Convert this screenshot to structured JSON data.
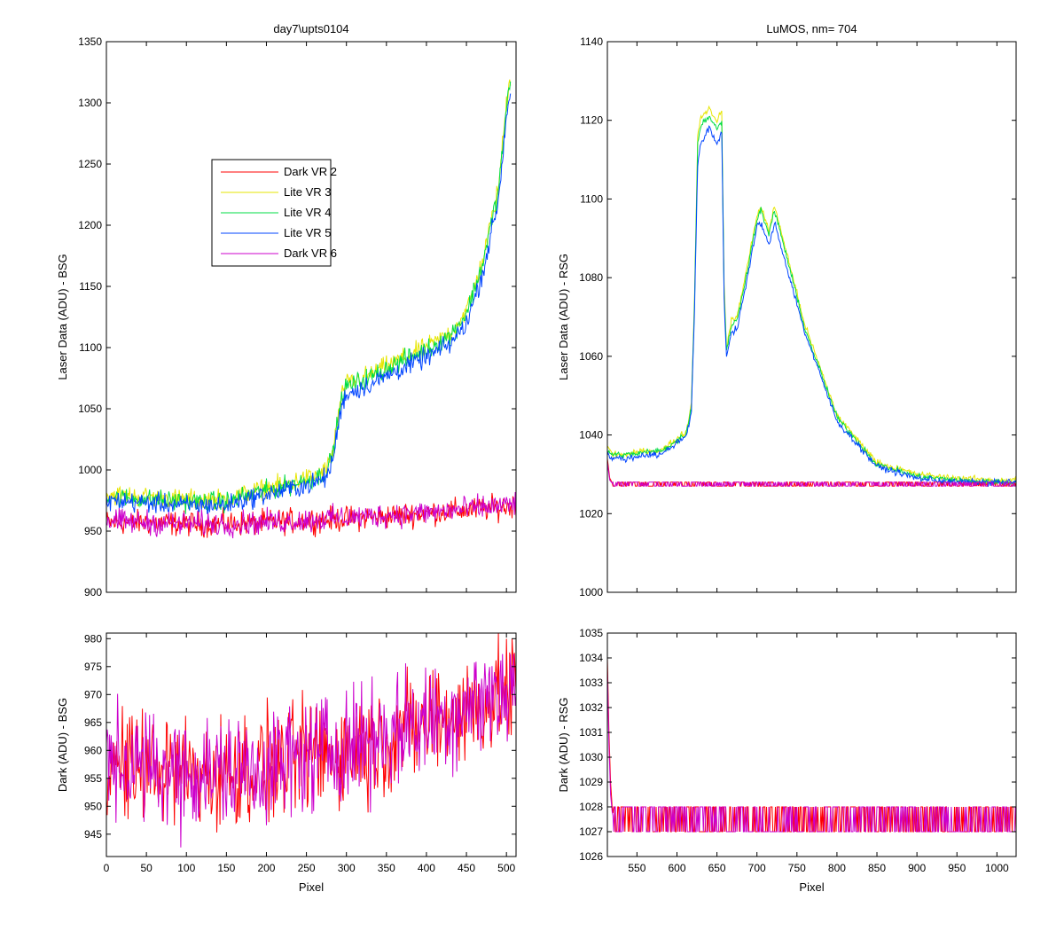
{
  "series_colors": {
    "Dark VR 2": "#ff0000",
    "Lite VR 3": "#e6e600",
    "Lite VR 4": "#00dd44",
    "Lite VR 5": "#0044ff",
    "Dark VR 6": "#cc00cc"
  },
  "chart_data": [
    {
      "id": "p1",
      "type": "line",
      "title": "day7\\upts0104",
      "xlabel": "",
      "ylabel": "Laser Data (ADU) - BSG",
      "xlim": [
        0,
        512
      ],
      "ylim": [
        900,
        1350
      ],
      "xticks": [
        0,
        50,
        100,
        150,
        200,
        250,
        300,
        350,
        400,
        450,
        500
      ],
      "xticklabels_visible": false,
      "yticks": [
        900,
        950,
        1000,
        1050,
        1100,
        1150,
        1200,
        1250,
        1300,
        1350
      ],
      "legend": {
        "placement": "upper-left-inside",
        "entries": [
          "Dark VR 2",
          "Lite VR 3",
          "Lite VR 4",
          "Lite VR 5",
          "Dark VR 6"
        ]
      },
      "series": [
        {
          "name": "Dark VR 2",
          "noise": 5,
          "x": [
            0,
            50,
            100,
            150,
            200,
            250,
            300,
            350,
            400,
            450,
            500,
            512
          ],
          "y": [
            957,
            957,
            956,
            956,
            957,
            959,
            960,
            962,
            965,
            967,
            970,
            972
          ]
        },
        {
          "name": "Lite VR 3",
          "noise": 4,
          "x": [
            0,
            50,
            100,
            150,
            180,
            220,
            260,
            275,
            283,
            290,
            296,
            300,
            330,
            360,
            400,
            430,
            450,
            470,
            490,
            500,
            505
          ],
          "y": [
            980,
            978,
            976,
            976,
            982,
            988,
            995,
            1000,
            1015,
            1045,
            1065,
            1070,
            1078,
            1088,
            1100,
            1112,
            1130,
            1170,
            1230,
            1300,
            1322
          ]
        },
        {
          "name": "Lite VR 4",
          "noise": 4,
          "x": [
            0,
            50,
            100,
            150,
            180,
            220,
            260,
            275,
            283,
            290,
            296,
            300,
            330,
            360,
            400,
            430,
            450,
            470,
            490,
            500,
            505
          ],
          "y": [
            978,
            976,
            974,
            974,
            980,
            986,
            993,
            998,
            1013,
            1043,
            1063,
            1068,
            1076,
            1086,
            1098,
            1110,
            1128,
            1168,
            1228,
            1296,
            1315
          ]
        },
        {
          "name": "Lite VR 5",
          "noise": 4,
          "x": [
            0,
            50,
            100,
            150,
            180,
            220,
            260,
            275,
            283,
            290,
            296,
            300,
            330,
            360,
            400,
            430,
            450,
            470,
            490,
            500,
            505
          ],
          "y": [
            975,
            973,
            971,
            971,
            977,
            983,
            989,
            994,
            1008,
            1038,
            1057,
            1062,
            1070,
            1080,
            1092,
            1103,
            1120,
            1160,
            1220,
            1290,
            1310
          ]
        },
        {
          "name": "Dark VR 6",
          "noise": 5,
          "x": [
            0,
            50,
            100,
            150,
            200,
            250,
            300,
            350,
            400,
            450,
            500,
            512
          ],
          "y": [
            958,
            957,
            956,
            956,
            957,
            959,
            961,
            963,
            965,
            968,
            971,
            972
          ]
        }
      ]
    },
    {
      "id": "p2",
      "type": "line",
      "title": "LuMOS, nm= 704",
      "xlabel": "",
      "ylabel": "Laser Data (ADU) - RSG",
      "xlim": [
        513,
        1024
      ],
      "ylim": [
        1000,
        1140
      ],
      "xticks": [
        550,
        600,
        650,
        700,
        750,
        800,
        850,
        900,
        950,
        1000
      ],
      "xticklabels_visible": false,
      "yticks": [
        1000,
        1020,
        1040,
        1060,
        1080,
        1100,
        1120,
        1140
      ],
      "series": [
        {
          "name": "Dark VR 2",
          "noise": 0,
          "x": [
            513,
            516,
            520,
            530,
            1024
          ],
          "y": [
            1034,
            1029,
            1027.5,
            1027.5,
            1027.5
          ]
        },
        {
          "name": "Lite VR 3",
          "noise": 0.4,
          "x": [
            513,
            520,
            540,
            560,
            580,
            600,
            612,
            618,
            622,
            626,
            630,
            640,
            650,
            656,
            659,
            662,
            668,
            675,
            690,
            700,
            705,
            715,
            722,
            730,
            760,
            800,
            850,
            900,
            950,
            1000,
            1024
          ],
          "y": [
            1037,
            1035,
            1035,
            1036,
            1036,
            1039,
            1041,
            1048,
            1075,
            1116,
            1121,
            1123,
            1120,
            1122,
            1078,
            1062,
            1069,
            1070,
            1085,
            1096,
            1098,
            1092,
            1098,
            1092,
            1068,
            1045,
            1033,
            1030,
            1029,
            1028.5,
            1028.5
          ]
        },
        {
          "name": "Lite VR 4",
          "noise": 0.4,
          "x": [
            513,
            520,
            540,
            560,
            580,
            600,
            612,
            618,
            622,
            626,
            630,
            640,
            650,
            656,
            659,
            662,
            668,
            675,
            690,
            700,
            705,
            715,
            722,
            730,
            760,
            800,
            850,
            900,
            950,
            1000,
            1024
          ],
          "y": [
            1036,
            1035,
            1035,
            1035.5,
            1036,
            1038.5,
            1040.5,
            1047,
            1074,
            1114,
            1119,
            1121,
            1118,
            1120,
            1076,
            1061,
            1068,
            1069,
            1084,
            1095,
            1097,
            1091,
            1097,
            1091,
            1067,
            1044.5,
            1032.5,
            1029.5,
            1028.5,
            1028,
            1028
          ]
        },
        {
          "name": "Lite VR 5",
          "noise": 0.4,
          "x": [
            513,
            520,
            540,
            560,
            580,
            600,
            612,
            618,
            622,
            626,
            630,
            640,
            650,
            656,
            659,
            662,
            668,
            675,
            690,
            700,
            705,
            715,
            722,
            730,
            760,
            800,
            850,
            900,
            950,
            1000,
            1024
          ],
          "y": [
            1035,
            1034,
            1034,
            1035,
            1035,
            1038,
            1040,
            1046,
            1072,
            1109,
            1114,
            1118,
            1114,
            1117,
            1074,
            1060,
            1066,
            1067,
            1082,
            1093,
            1094,
            1088,
            1094,
            1088,
            1066,
            1043.5,
            1032,
            1029,
            1028,
            1028,
            1028
          ]
        },
        {
          "name": "Dark VR 6",
          "noise": 0,
          "x": [
            513,
            516,
            520,
            530,
            1024
          ],
          "y": [
            1033,
            1028.5,
            1027.5,
            1027.5,
            1027.5
          ]
        }
      ]
    },
    {
      "id": "p3",
      "type": "line",
      "title": "",
      "xlabel": "Pixel",
      "ylabel": "Dark (ADU) - BSG",
      "xlim": [
        0,
        512
      ],
      "ylim": [
        941,
        981
      ],
      "xticks": [
        0,
        50,
        100,
        150,
        200,
        250,
        300,
        350,
        400,
        450,
        500
      ],
      "xticklabels_visible": true,
      "yticks": [
        945,
        950,
        955,
        960,
        965,
        970,
        975,
        980
      ],
      "series": [
        {
          "name": "Dark VR 2",
          "noise": 5,
          "x": [
            0,
            50,
            100,
            150,
            200,
            250,
            300,
            350,
            400,
            450,
            500,
            512
          ],
          "y": [
            957,
            957,
            956,
            956,
            957,
            959,
            960,
            962,
            965,
            967,
            970,
            972
          ]
        },
        {
          "name": "Dark VR 6",
          "noise": 5,
          "x": [
            0,
            50,
            100,
            150,
            200,
            250,
            300,
            350,
            400,
            450,
            500,
            512
          ],
          "y": [
            958,
            957,
            956,
            956,
            957,
            959,
            961,
            963,
            965,
            968,
            971,
            972
          ]
        }
      ]
    },
    {
      "id": "p4",
      "type": "line",
      "title": "",
      "xlabel": "Pixel",
      "ylabel": "Dark (ADU) - RSG",
      "xlim": [
        513,
        1024
      ],
      "ylim": [
        1026,
        1035
      ],
      "xticks": [
        550,
        600,
        650,
        700,
        750,
        800,
        850,
        900,
        950,
        1000
      ],
      "xticklabels_visible": true,
      "yticks": [
        1026,
        1027,
        1028,
        1029,
        1030,
        1031,
        1032,
        1033,
        1034,
        1035
      ],
      "series": [
        {
          "name": "Dark VR 2",
          "noise": 0,
          "x": [
            513,
            515,
            517,
            519,
            521,
            1024
          ],
          "y": [
            1034,
            1031,
            1029,
            1028,
            1027.5,
            1027.5
          ]
        },
        {
          "name": "Dark VR 6",
          "noise": 0,
          "x": [
            513,
            515,
            517,
            519,
            521,
            1024
          ],
          "y": [
            1033.5,
            1030.5,
            1028.5,
            1027.8,
            1027.5,
            1027.5
          ]
        }
      ]
    }
  ]
}
